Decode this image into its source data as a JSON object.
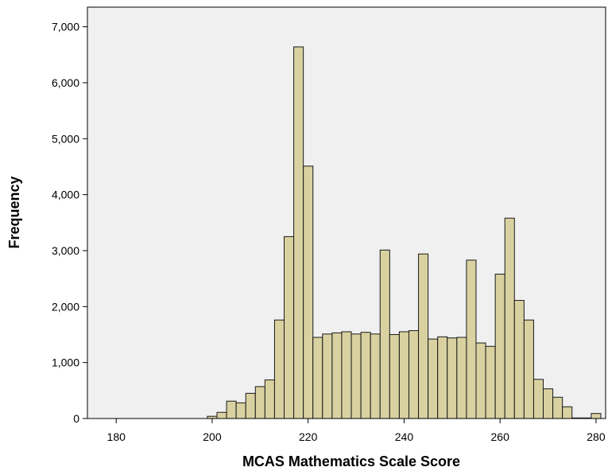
{
  "colors": {
    "plot_background": "#f0f0f0",
    "bar_fill": "#d9d1a0",
    "bar_stroke": "#1a1a1a",
    "axis": "#000000"
  },
  "chart_data": {
    "type": "bar",
    "title": "",
    "xlabel": "MCAS Mathematics Scale Score",
    "ylabel": "Frequency",
    "xlim": [
      174,
      282
    ],
    "ylim": [
      0,
      7350
    ],
    "grid": false,
    "bin_width": 2,
    "x_ticks": [
      180,
      200,
      220,
      240,
      260,
      280
    ],
    "x_tick_labels": [
      "180",
      "200",
      "220",
      "240",
      "260",
      "280"
    ],
    "y_ticks": [
      0,
      1000,
      2000,
      3000,
      4000,
      5000,
      6000,
      7000
    ],
    "y_tick_labels": [
      "0",
      "1,000",
      "2,000",
      "3,000",
      "4,000",
      "5,000",
      "6,000",
      "7,000"
    ],
    "bins": [
      200,
      202,
      204,
      206,
      208,
      210,
      212,
      214,
      216,
      218,
      220,
      222,
      224,
      226,
      228,
      230,
      232,
      234,
      236,
      238,
      240,
      242,
      244,
      246,
      248,
      250,
      252,
      254,
      256,
      258,
      260,
      262,
      264,
      266,
      268,
      270,
      272,
      274,
      276,
      278,
      280
    ],
    "values": [
      40,
      110,
      310,
      280,
      450,
      570,
      690,
      1760,
      3250,
      6640,
      4510,
      1450,
      1510,
      1530,
      1550,
      1510,
      1540,
      1510,
      3010,
      1500,
      1550,
      1570,
      2940,
      1420,
      1460,
      1440,
      1450,
      2830,
      1350,
      1290,
      2580,
      3580,
      2110,
      1760,
      700,
      530,
      380,
      210,
      10,
      10,
      90
    ]
  }
}
